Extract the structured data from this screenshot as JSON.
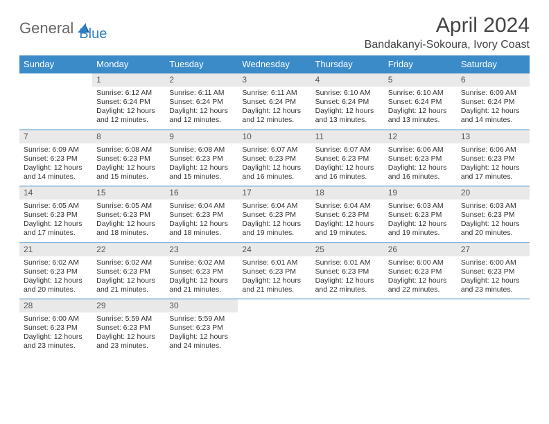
{
  "brand": {
    "part1": "General",
    "part2": "Blue"
  },
  "title": "April 2024",
  "location": "Bandakanyi-Sokoura, Ivory Coast",
  "colors": {
    "header_bg": "#3b8bc9",
    "accent": "#2d7fc3",
    "daynum_bg": "#e9e9e9",
    "text": "#333333"
  },
  "weekdays": [
    "Sunday",
    "Monday",
    "Tuesday",
    "Wednesday",
    "Thursday",
    "Friday",
    "Saturday"
  ],
  "weeks": [
    [
      null,
      {
        "n": "1",
        "sr": "6:12 AM",
        "ss": "6:24 PM",
        "dl": "12 hours and 12 minutes."
      },
      {
        "n": "2",
        "sr": "6:11 AM",
        "ss": "6:24 PM",
        "dl": "12 hours and 12 minutes."
      },
      {
        "n": "3",
        "sr": "6:11 AM",
        "ss": "6:24 PM",
        "dl": "12 hours and 12 minutes."
      },
      {
        "n": "4",
        "sr": "6:10 AM",
        "ss": "6:24 PM",
        "dl": "12 hours and 13 minutes."
      },
      {
        "n": "5",
        "sr": "6:10 AM",
        "ss": "6:24 PM",
        "dl": "12 hours and 13 minutes."
      },
      {
        "n": "6",
        "sr": "6:09 AM",
        "ss": "6:24 PM",
        "dl": "12 hours and 14 minutes."
      }
    ],
    [
      {
        "n": "7",
        "sr": "6:09 AM",
        "ss": "6:23 PM",
        "dl": "12 hours and 14 minutes."
      },
      {
        "n": "8",
        "sr": "6:08 AM",
        "ss": "6:23 PM",
        "dl": "12 hours and 15 minutes."
      },
      {
        "n": "9",
        "sr": "6:08 AM",
        "ss": "6:23 PM",
        "dl": "12 hours and 15 minutes."
      },
      {
        "n": "10",
        "sr": "6:07 AM",
        "ss": "6:23 PM",
        "dl": "12 hours and 16 minutes."
      },
      {
        "n": "11",
        "sr": "6:07 AM",
        "ss": "6:23 PM",
        "dl": "12 hours and 16 minutes."
      },
      {
        "n": "12",
        "sr": "6:06 AM",
        "ss": "6:23 PM",
        "dl": "12 hours and 16 minutes."
      },
      {
        "n": "13",
        "sr": "6:06 AM",
        "ss": "6:23 PM",
        "dl": "12 hours and 17 minutes."
      }
    ],
    [
      {
        "n": "14",
        "sr": "6:05 AM",
        "ss": "6:23 PM",
        "dl": "12 hours and 17 minutes."
      },
      {
        "n": "15",
        "sr": "6:05 AM",
        "ss": "6:23 PM",
        "dl": "12 hours and 18 minutes."
      },
      {
        "n": "16",
        "sr": "6:04 AM",
        "ss": "6:23 PM",
        "dl": "12 hours and 18 minutes."
      },
      {
        "n": "17",
        "sr": "6:04 AM",
        "ss": "6:23 PM",
        "dl": "12 hours and 19 minutes."
      },
      {
        "n": "18",
        "sr": "6:04 AM",
        "ss": "6:23 PM",
        "dl": "12 hours and 19 minutes."
      },
      {
        "n": "19",
        "sr": "6:03 AM",
        "ss": "6:23 PM",
        "dl": "12 hours and 19 minutes."
      },
      {
        "n": "20",
        "sr": "6:03 AM",
        "ss": "6:23 PM",
        "dl": "12 hours and 20 minutes."
      }
    ],
    [
      {
        "n": "21",
        "sr": "6:02 AM",
        "ss": "6:23 PM",
        "dl": "12 hours and 20 minutes."
      },
      {
        "n": "22",
        "sr": "6:02 AM",
        "ss": "6:23 PM",
        "dl": "12 hours and 21 minutes."
      },
      {
        "n": "23",
        "sr": "6:02 AM",
        "ss": "6:23 PM",
        "dl": "12 hours and 21 minutes."
      },
      {
        "n": "24",
        "sr": "6:01 AM",
        "ss": "6:23 PM",
        "dl": "12 hours and 21 minutes."
      },
      {
        "n": "25",
        "sr": "6:01 AM",
        "ss": "6:23 PM",
        "dl": "12 hours and 22 minutes."
      },
      {
        "n": "26",
        "sr": "6:00 AM",
        "ss": "6:23 PM",
        "dl": "12 hours and 22 minutes."
      },
      {
        "n": "27",
        "sr": "6:00 AM",
        "ss": "6:23 PM",
        "dl": "12 hours and 23 minutes."
      }
    ],
    [
      {
        "n": "28",
        "sr": "6:00 AM",
        "ss": "6:23 PM",
        "dl": "12 hours and 23 minutes."
      },
      {
        "n": "29",
        "sr": "5:59 AM",
        "ss": "6:23 PM",
        "dl": "12 hours and 23 minutes."
      },
      {
        "n": "30",
        "sr": "5:59 AM",
        "ss": "6:23 PM",
        "dl": "12 hours and 24 minutes."
      },
      null,
      null,
      null,
      null
    ]
  ],
  "labels": {
    "sunrise": "Sunrise:",
    "sunset": "Sunset:",
    "daylight": "Daylight:"
  }
}
